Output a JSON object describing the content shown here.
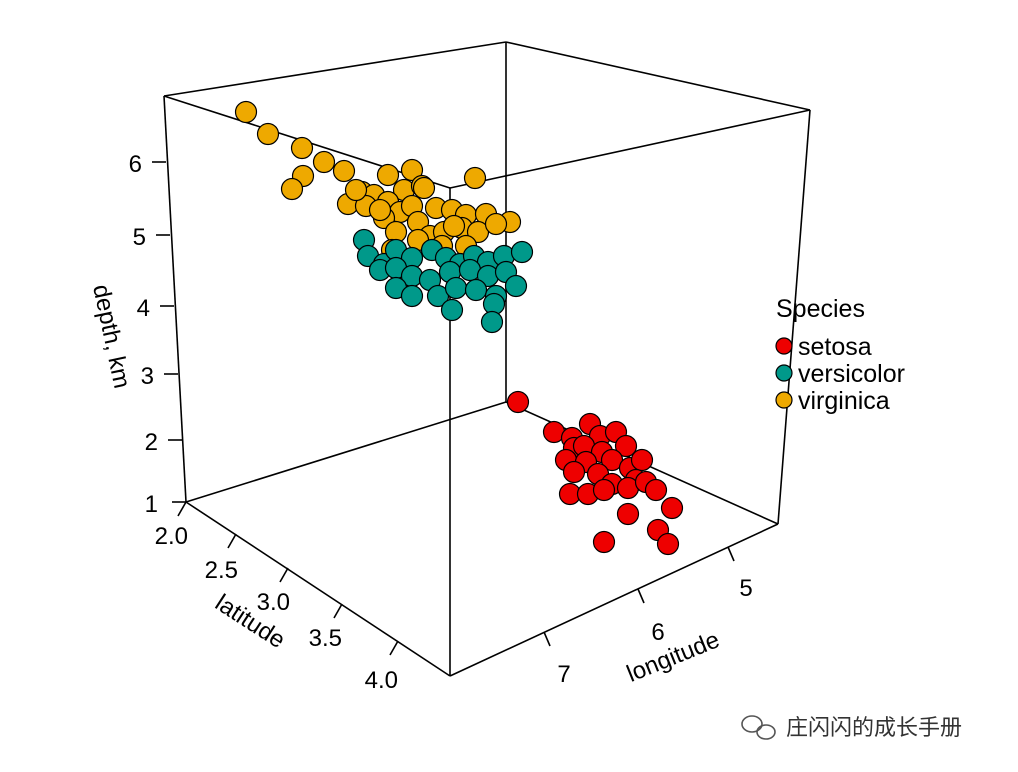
{
  "chart_data": {
    "type": "scatter",
    "title": "",
    "xlabel": "longitude",
    "ylabel": "latitude",
    "zlabel": "depth, km",
    "x_ticks": [
      "5",
      "6",
      "7"
    ],
    "y_ticks": [
      "2.0",
      "2.5",
      "3.0",
      "3.5",
      "4.0"
    ],
    "z_ticks": [
      "1",
      "2",
      "3",
      "4",
      "5",
      "6"
    ],
    "legend": {
      "title": "Species",
      "position": "right",
      "entries": [
        {
          "name": "setosa",
          "color": "#ee0000"
        },
        {
          "name": "versicolor",
          "color": "#00998a"
        },
        {
          "name": "virginica",
          "color": "#eea900"
        }
      ]
    },
    "series": [
      {
        "name": "virginica",
        "color": "#eea900",
        "points": [
          [
            246,
            112
          ],
          [
            268,
            134
          ],
          [
            302,
            148
          ],
          [
            324,
            162
          ],
          [
            344,
            171
          ],
          [
            303,
            176
          ],
          [
            292,
            189
          ],
          [
            388,
            175
          ],
          [
            412,
            170
          ],
          [
            475,
            178
          ],
          [
            362,
            192
          ],
          [
            374,
            195
          ],
          [
            404,
            190
          ],
          [
            422,
            186
          ],
          [
            348,
            204
          ],
          [
            366,
            206
          ],
          [
            388,
            202
          ],
          [
            400,
            212
          ],
          [
            412,
            206
          ],
          [
            436,
            208
          ],
          [
            452,
            210
          ],
          [
            466,
            215
          ],
          [
            486,
            214
          ],
          [
            510,
            222
          ],
          [
            384,
            218
          ],
          [
            396,
            232
          ],
          [
            418,
            222
          ],
          [
            430,
            236
          ],
          [
            444,
            232
          ],
          [
            462,
            228
          ],
          [
            478,
            232
          ],
          [
            496,
            224
          ],
          [
            392,
            250
          ],
          [
            418,
            240
          ],
          [
            442,
            246
          ],
          [
            466,
            246
          ],
          [
            424,
            188
          ],
          [
            356,
            190
          ],
          [
            380,
            210
          ],
          [
            454,
            226
          ]
        ]
      },
      {
        "name": "versicolor",
        "color": "#00998a",
        "points": [
          [
            364,
            240
          ],
          [
            368,
            256
          ],
          [
            384,
            264
          ],
          [
            396,
            250
          ],
          [
            412,
            258
          ],
          [
            432,
            250
          ],
          [
            446,
            258
          ],
          [
            460,
            264
          ],
          [
            474,
            256
          ],
          [
            488,
            262
          ],
          [
            504,
            256
          ],
          [
            522,
            252
          ],
          [
            380,
            270
          ],
          [
            396,
            268
          ],
          [
            412,
            276
          ],
          [
            430,
            280
          ],
          [
            450,
            272
          ],
          [
            470,
            270
          ],
          [
            488,
            276
          ],
          [
            506,
            272
          ],
          [
            396,
            288
          ],
          [
            412,
            296
          ],
          [
            438,
            296
          ],
          [
            456,
            288
          ],
          [
            476,
            290
          ],
          [
            496,
            296
          ],
          [
            516,
            286
          ],
          [
            452,
            310
          ],
          [
            494,
            304
          ],
          [
            492,
            322
          ]
        ]
      },
      {
        "name": "setosa",
        "color": "#ee0000",
        "points": [
          [
            518,
            402
          ],
          [
            554,
            432
          ],
          [
            572,
            438
          ],
          [
            590,
            424
          ],
          [
            600,
            436
          ],
          [
            616,
            432
          ],
          [
            574,
            448
          ],
          [
            584,
            446
          ],
          [
            602,
            452
          ],
          [
            626,
            446
          ],
          [
            566,
            460
          ],
          [
            586,
            462
          ],
          [
            612,
            460
          ],
          [
            630,
            468
          ],
          [
            642,
            460
          ],
          [
            574,
            472
          ],
          [
            598,
            474
          ],
          [
            612,
            484
          ],
          [
            636,
            480
          ],
          [
            570,
            494
          ],
          [
            588,
            494
          ],
          [
            604,
            490
          ],
          [
            628,
            488
          ],
          [
            646,
            482
          ],
          [
            656,
            490
          ],
          [
            672,
            508
          ],
          [
            628,
            514
          ],
          [
            658,
            530
          ],
          [
            604,
            542
          ],
          [
            668,
            544
          ]
        ]
      }
    ]
  },
  "watermark": {
    "text": "庄闪闪的成长手册"
  }
}
